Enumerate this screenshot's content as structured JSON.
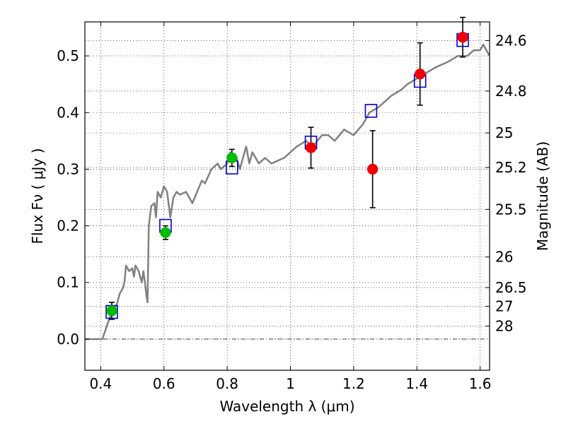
{
  "chart_data": {
    "type": "scatter",
    "xlabel": "Wavelength  λ (μm)",
    "ylabel": "Flux  Fν  ( μJy )",
    "ylabel_right": "Magnitude (AB)",
    "xlim": [
      0.35,
      1.63
    ],
    "ylim": [
      -0.055,
      0.56
    ],
    "x_ticks": [
      0.4,
      0.6,
      0.8,
      1.0,
      1.2,
      1.4,
      1.6
    ],
    "x_tick_labels": [
      "0.4",
      "0.6",
      "0.8",
      "1",
      "1.2",
      "1.4",
      "1.6"
    ],
    "y_ticks": [
      0.0,
      0.1,
      0.2,
      0.3,
      0.4,
      0.5
    ],
    "y_tick_labels": [
      "0.0",
      "0.1",
      "0.2",
      "0.3",
      "0.4",
      "0.5"
    ],
    "right_ticks": [
      {
        "label": "24.6",
        "flux": 0.527
      },
      {
        "label": "24.8",
        "flux": 0.438
      },
      {
        "label": "25",
        "flux": 0.364
      },
      {
        "label": "25.2",
        "flux": 0.303
      },
      {
        "label": "25.5",
        "flux": 0.229
      },
      {
        "label": "26",
        "flux": 0.145
      },
      {
        "label": "26.5",
        "flux": 0.091
      },
      {
        "label": "27",
        "flux": 0.058
      },
      {
        "label": "28",
        "flux": 0.023
      }
    ],
    "grid": true,
    "model_sed": {
      "color": "#808080",
      "x": [
        0.35,
        0.405,
        0.43,
        0.45,
        0.46,
        0.47,
        0.475,
        0.48,
        0.49,
        0.5,
        0.505,
        0.51,
        0.52,
        0.53,
        0.535,
        0.54,
        0.545,
        0.548,
        0.552,
        0.56,
        0.57,
        0.575,
        0.58,
        0.59,
        0.6,
        0.61,
        0.62,
        0.63,
        0.64,
        0.65,
        0.67,
        0.69,
        0.72,
        0.73,
        0.75,
        0.77,
        0.78,
        0.8,
        0.81,
        0.83,
        0.84,
        0.85,
        0.86,
        0.87,
        0.88,
        0.9,
        0.92,
        0.94,
        0.96,
        0.98,
        1.0,
        1.02,
        1.05,
        1.07,
        1.1,
        1.12,
        1.14,
        1.17,
        1.2,
        1.23,
        1.25,
        1.28,
        1.3,
        1.32,
        1.35,
        1.37,
        1.4,
        1.43,
        1.46,
        1.5,
        1.53,
        1.56,
        1.58,
        1.6,
        1.61,
        1.63
      ],
      "y": [
        0.0,
        0.0,
        0.04,
        0.06,
        0.08,
        0.09,
        0.1,
        0.13,
        0.12,
        0.125,
        0.11,
        0.13,
        0.12,
        0.1,
        0.12,
        0.1,
        0.075,
        0.065,
        0.2,
        0.235,
        0.24,
        0.215,
        0.26,
        0.25,
        0.27,
        0.26,
        0.215,
        0.25,
        0.26,
        0.255,
        0.26,
        0.24,
        0.28,
        0.275,
        0.3,
        0.31,
        0.3,
        0.31,
        0.33,
        0.32,
        0.3,
        0.32,
        0.34,
        0.31,
        0.33,
        0.31,
        0.32,
        0.31,
        0.315,
        0.32,
        0.33,
        0.34,
        0.35,
        0.34,
        0.36,
        0.36,
        0.35,
        0.37,
        0.36,
        0.38,
        0.4,
        0.41,
        0.42,
        0.43,
        0.44,
        0.45,
        0.46,
        0.47,
        0.48,
        0.49,
        0.5,
        0.5,
        0.51,
        0.51,
        0.52,
        0.5
      ]
    },
    "series": [
      {
        "marker": "square",
        "color": "#0000cc",
        "x": [
          0.435,
          0.605,
          0.815,
          1.065,
          1.255,
          1.41,
          1.545
        ],
        "y": [
          0.048,
          0.2,
          0.303,
          0.347,
          0.403,
          0.456,
          0.528
        ]
      },
      {
        "marker": "circle",
        "color": "#00bb00",
        "x": [
          0.435,
          0.605,
          0.815
        ],
        "y": [
          0.05,
          0.188,
          0.32
        ],
        "yerr": [
          0.015,
          0.012,
          0.015
        ]
      },
      {
        "marker": "circle",
        "color": "#ee0000",
        "x": [
          1.065,
          1.26,
          1.41,
          1.545
        ],
        "y": [
          0.338,
          0.3,
          0.468,
          0.533
        ],
        "yerr": [
          0.036,
          0.068,
          0.055,
          0.035
        ]
      }
    ]
  }
}
